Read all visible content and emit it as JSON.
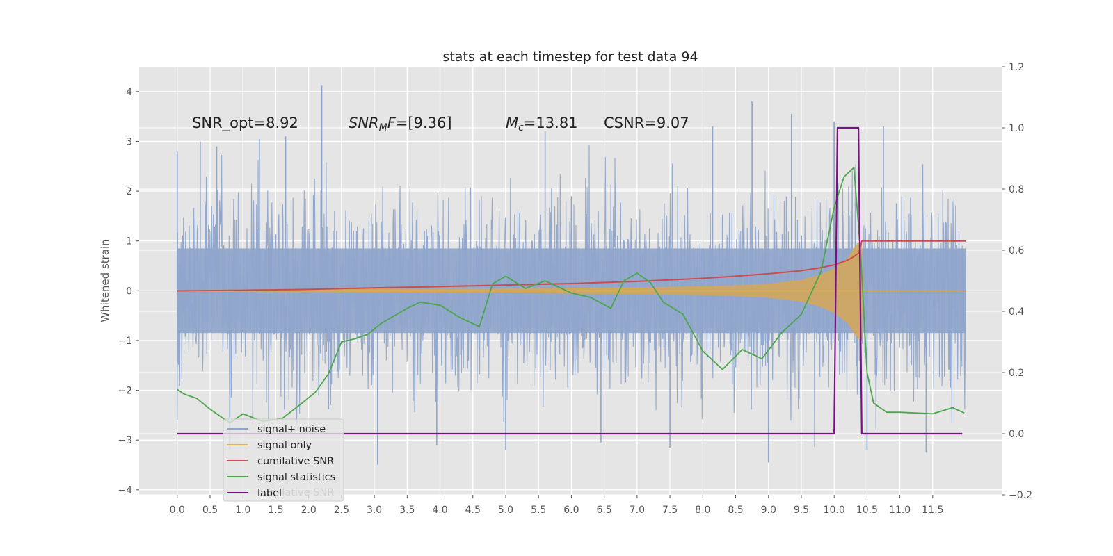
{
  "chart_data": {
    "type": "line",
    "title": "stats at each timestep for test data 94",
    "ylabel": "Whitened strain",
    "xlim": [
      -0.58,
      12.55
    ],
    "ylim": [
      -4.1,
      4.5
    ],
    "y2lim": [
      -0.2,
      1.2
    ],
    "xticks": [
      "0.0",
      "0.5",
      "1.0",
      "1.5",
      "2.0",
      "2.5",
      "3.0",
      "3.5",
      "4.0",
      "4.5",
      "5.0",
      "5.5",
      "6.0",
      "6.5",
      "7.0",
      "7.5",
      "8.0",
      "8.5",
      "9.0",
      "9.5",
      "10.0",
      "10.5",
      "11.0",
      "11.5"
    ],
    "yticks": [
      "4",
      "3",
      "2",
      "1",
      "0",
      "−1",
      "−2",
      "−3",
      "−4"
    ],
    "y2ticks": [
      "1.2",
      "1.0",
      "0.8",
      "0.6",
      "0.4",
      "0.2",
      "0.0",
      "−0.2"
    ],
    "annotations": {
      "snr_opt": "SNR_opt=8.92",
      "snr_mf_main": "SNR",
      "snr_mf_sub": "M",
      "snr_mf_italic": "F",
      "snr_mf_value": "=[9.36]",
      "mc_main": "M",
      "mc_sub": "c",
      "mc_value": "=13.81",
      "csnr": "CSNR=9.07"
    },
    "legend": {
      "position": "lower left",
      "entries": [
        "signal+ noise",
        "signal only",
        "cumilative SNR",
        "signal statistics",
        "label"
      ],
      "ghost_text": "cumilative SNR"
    },
    "colors": {
      "noise": "#8fa5cb",
      "signal": "#e0b150",
      "signal_fill": "#d4a759",
      "snr": "#cc4c4c",
      "stat": "#4ba64b",
      "label": "#7a0f86",
      "background": "#e5e5e5",
      "grid": "#ffffff"
    },
    "series": [
      {
        "name": "signal+ noise",
        "axis": "left",
        "kind": "noise",
        "x_range": [
          0.0,
          12.0
        ],
        "envelope": {
          "typical_peak": [
            -2.5,
            2.5
          ],
          "extremes": [
            -3.5,
            4.1
          ]
        },
        "spikes": [
          {
            "x": 0.0,
            "y": 2.8
          },
          {
            "x": 0.35,
            "y": 3.0
          },
          {
            "x": 0.6,
            "y": 2.9
          },
          {
            "x": 0.8,
            "y": -3.2
          },
          {
            "x": 1.25,
            "y": 3.05
          },
          {
            "x": 1.65,
            "y": 3.1
          },
          {
            "x": 2.2,
            "y": 4.12
          },
          {
            "x": 3.05,
            "y": -3.5
          },
          {
            "x": 3.95,
            "y": -3.1
          },
          {
            "x": 5.0,
            "y": -3.2
          },
          {
            "x": 5.6,
            "y": 3.2
          },
          {
            "x": 6.45,
            "y": -3.05
          },
          {
            "x": 6.0,
            "y": 1.9
          },
          {
            "x": 7.5,
            "y": -3.15
          },
          {
            "x": 8.15,
            "y": 3.3
          },
          {
            "x": 8.75,
            "y": 3.8
          },
          {
            "x": 9.35,
            "y": 3.55
          },
          {
            "x": 9.0,
            "y": -3.45
          },
          {
            "x": 10.0,
            "y": 3.4
          },
          {
            "x": 10.5,
            "y": -3.2
          },
          {
            "x": 10.75,
            "y": 3.3
          },
          {
            "x": 11.4,
            "y": -3.25
          }
        ]
      },
      {
        "name": "signal only",
        "axis": "left",
        "kind": "chirp",
        "x": [
          0.0,
          2.0,
          4.0,
          6.0,
          7.0,
          8.0,
          8.5,
          9.0,
          9.5,
          9.8,
          10.0,
          10.2,
          10.35,
          10.42,
          10.45,
          12.0
        ],
        "amplitude": [
          0.02,
          0.03,
          0.04,
          0.06,
          0.07,
          0.09,
          0.11,
          0.14,
          0.22,
          0.33,
          0.45,
          0.65,
          0.95,
          1.0,
          0.0,
          0.0
        ]
      },
      {
        "name": "cumilative SNR",
        "axis": "right",
        "x": [
          0.0,
          1.0,
          2.0,
          3.0,
          4.0,
          5.0,
          6.0,
          7.0,
          8.0,
          8.5,
          9.0,
          9.5,
          9.8,
          10.0,
          10.2,
          10.3,
          10.38,
          10.42,
          10.5,
          12.0
        ],
        "values": [
          0.467,
          0.469,
          0.472,
          0.477,
          0.481,
          0.486,
          0.491,
          0.498,
          0.508,
          0.515,
          0.523,
          0.533,
          0.543,
          0.552,
          0.567,
          0.579,
          0.592,
          0.63,
          0.63,
          0.63
        ]
      },
      {
        "name": "signal statistics",
        "axis": "right",
        "x": [
          0.0,
          0.1,
          0.3,
          0.5,
          0.8,
          1.0,
          1.3,
          1.6,
          1.9,
          2.1,
          2.3,
          2.5,
          2.7,
          2.9,
          3.1,
          3.3,
          3.5,
          3.7,
          4.0,
          4.3,
          4.6,
          4.8,
          5.0,
          5.3,
          5.6,
          6.0,
          6.3,
          6.6,
          6.8,
          7.0,
          7.2,
          7.4,
          7.7,
          8.0,
          8.3,
          8.6,
          8.9,
          9.2,
          9.5,
          9.8,
          10.0,
          10.15,
          10.3,
          10.4,
          10.5,
          10.6,
          10.8,
          11.0,
          11.5,
          11.8,
          11.98
        ],
        "values": [
          0.145,
          0.13,
          0.115,
          0.08,
          0.035,
          0.065,
          0.04,
          0.05,
          0.1,
          0.135,
          0.195,
          0.3,
          0.31,
          0.325,
          0.36,
          0.385,
          0.41,
          0.43,
          0.42,
          0.38,
          0.35,
          0.49,
          0.515,
          0.475,
          0.5,
          0.46,
          0.445,
          0.41,
          0.5,
          0.525,
          0.495,
          0.43,
          0.39,
          0.27,
          0.21,
          0.275,
          0.245,
          0.33,
          0.39,
          0.53,
          0.74,
          0.84,
          0.87,
          0.6,
          0.2,
          0.1,
          0.07,
          0.07,
          0.065,
          0.085,
          0.068
        ]
      },
      {
        "name": "label",
        "axis": "right",
        "x": [
          0.0,
          10.0,
          10.05,
          10.37,
          10.42,
          11.95
        ],
        "values": [
          0.0,
          0.0,
          1.0,
          1.0,
          0.0,
          0.0
        ]
      }
    ]
  }
}
